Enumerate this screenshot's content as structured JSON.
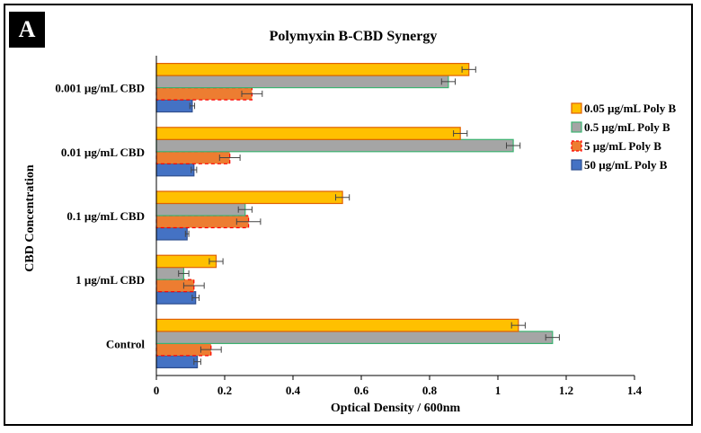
{
  "panel_label": "A",
  "chart_data": {
    "type": "bar",
    "orientation": "horizontal",
    "title": "Polymyxin B-CBD Synergy",
    "xlabel": "Optical Density / 600nm",
    "ylabel": "CBD Concentration",
    "xlim": [
      0,
      1.4
    ],
    "x_ticks": [
      0,
      0.2,
      0.4,
      0.6,
      0.8,
      1,
      1.2,
      1.4
    ],
    "x_tick_labels": [
      "0",
      "0.2",
      "0.4",
      "0.6",
      "0.8",
      "1",
      "1.2",
      "1.4"
    ],
    "categories": [
      "Control",
      "1 µg/mL CBD",
      "0.1 µg/mL CBD",
      "0.01 µg/mL CBD",
      "0.001 µg/mL CBD"
    ],
    "series": [
      {
        "name": "50 µg/mL Poly B",
        "fill": "#4472C4",
        "stroke": "#2F4F8F",
        "dashed": false,
        "values": [
          0.12,
          0.115,
          0.09,
          0.11,
          0.105
        ],
        "errors": [
          0.01,
          0.01,
          0.005,
          0.008,
          0.007
        ]
      },
      {
        "name": "5 µg/mL Poly B",
        "fill": "#ED7D31",
        "stroke": "#FF0000",
        "dashed": true,
        "values": [
          0.16,
          0.11,
          0.27,
          0.215,
          0.28
        ],
        "errors": [
          0.03,
          0.03,
          0.035,
          0.03,
          0.03
        ]
      },
      {
        "name": "0.5 µg/mL Poly B",
        "fill": "#A5A5A5",
        "stroke": "#3CB371",
        "dashed": false,
        "values": [
          1.16,
          0.08,
          0.26,
          1.045,
          0.855
        ],
        "errors": [
          0.02,
          0.015,
          0.02,
          0.02,
          0.02
        ]
      },
      {
        "name": "0.05 µg/mL Poly B",
        "fill": "#FFC000",
        "stroke": "#E06000",
        "dashed": false,
        "values": [
          1.06,
          0.175,
          0.545,
          0.89,
          0.915
        ],
        "errors": [
          0.02,
          0.02,
          0.02,
          0.02,
          0.02
        ]
      }
    ],
    "legend_position": "right",
    "legend_order": [
      "0.05 µg/mL Poly B",
      "0.5 µg/mL Poly B",
      "5 µg/mL Poly B",
      "50 µg/mL Poly B"
    ],
    "grid": false
  }
}
